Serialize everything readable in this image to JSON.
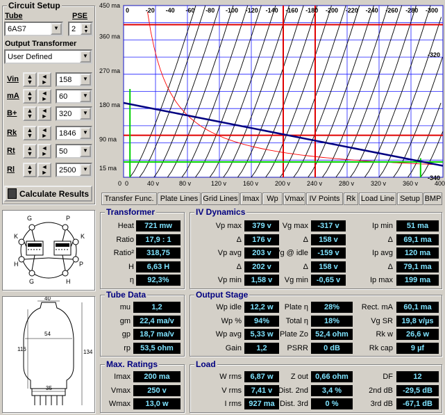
{
  "circuit": {
    "title": "Circuit Setup",
    "tube_label": "Tube",
    "tube_value": "6AS7",
    "pse_label": "PSE",
    "pse_value": "2",
    "ot_label": "Output Transformer",
    "ot_value": "User Defined",
    "params": [
      {
        "label": "Vin",
        "value": "158"
      },
      {
        "label": "mA",
        "value": "60"
      },
      {
        "label": "B+",
        "value": "320"
      },
      {
        "label": "Rk",
        "value": "1846"
      },
      {
        "label": "Rt",
        "value": "50"
      },
      {
        "label": "Rl",
        "value": "2500"
      }
    ],
    "calc_label": "Calculate Results"
  },
  "tabs": [
    "Transfer Func.",
    "Plate Lines",
    "Grid Lines",
    "Imax",
    "Wp",
    "Vmax",
    "IV Points",
    "Rk",
    "Load Line",
    "Setup",
    "BMP"
  ],
  "chart_data": {
    "type": "line",
    "xlabel": "v",
    "ylabel": "ma",
    "x_ticks": [
      "0",
      "40 v",
      "80 v",
      "120 v",
      "160 v",
      "200 v",
      "240 v",
      "280 v",
      "320 v",
      "360 v",
      "400 v"
    ],
    "y_ticks": [
      "450 ma",
      "360 ma",
      "270 ma",
      "180 ma",
      "90 ma",
      "15 ma"
    ],
    "x_top_ticks": [
      "0",
      "-20",
      "-40",
      "-60",
      "-80",
      "-100",
      "-120",
      "-140",
      "-160",
      "-180",
      "-200",
      "-220",
      "-240",
      "-260",
      "-280",
      "-300"
    ],
    "extra_grid_labels": [
      "-320",
      "-340"
    ],
    "xlim": [
      0,
      400
    ],
    "ylim": [
      0,
      450
    ],
    "load_line": {
      "x": [
        0,
        400
      ],
      "y": [
        195,
        30
      ]
    },
    "operating_point": {
      "vp": 240,
      "ip": 100
    },
    "red_v_lines": [
      200,
      240
    ],
    "red_h_lines": [
      400,
      110
    ],
    "green_h_line": 40,
    "green_v_line": 8,
    "max_dissipation_watts": 13
  },
  "panels": {
    "transformer": {
      "title": "Transformer",
      "rows": [
        {
          "label": "Heat",
          "value": "721 mw"
        },
        {
          "label": "Ratio",
          "value": "17,9 : 1"
        },
        {
          "label": "Ratio²",
          "value": "318,75"
        },
        {
          "label": "H",
          "value": "6,63 H"
        },
        {
          "label": "η",
          "value": "92,3%"
        }
      ]
    },
    "iv": {
      "title": "IV Dynamics",
      "col1": [
        {
          "label": "Vp max",
          "value": "379 v"
        },
        {
          "label": "Δ",
          "value": "176 v"
        },
        {
          "label": "Vp avg",
          "value": "203 v"
        },
        {
          "label": "Δ",
          "value": "202 v"
        },
        {
          "label": "Vp min",
          "value": "1,58 v"
        }
      ],
      "col2": [
        {
          "label": "Vg max",
          "value": "-317 v"
        },
        {
          "label": "Δ",
          "value": "158 v"
        },
        {
          "label": "Vg @ idle",
          "value": "-159 v"
        },
        {
          "label": "Δ",
          "value": "158 v"
        },
        {
          "label": "Vg min",
          "value": "-0,65 v"
        }
      ],
      "col3": [
        {
          "label": "Ip min",
          "value": "51 ma"
        },
        {
          "label": "Δ",
          "value": "69,1 ma"
        },
        {
          "label": "Ip avg",
          "value": "120 ma"
        },
        {
          "label": "Δ",
          "value": "79,1 ma"
        },
        {
          "label": "Ip max",
          "value": "199 ma"
        }
      ]
    },
    "tube": {
      "title": "Tube Data",
      "rows": [
        {
          "label": "mu",
          "value": "1,2"
        },
        {
          "label": "gm",
          "value": "22,4 ma/v"
        },
        {
          "label": "gp",
          "value": "18,7 ma/v"
        },
        {
          "label": "rp",
          "value": "53,5 ohm"
        }
      ]
    },
    "output": {
      "title": "Output Stage",
      "col1": [
        {
          "label": "Wp idle",
          "value": "12,2 w"
        },
        {
          "label": "Wp %",
          "value": "94%"
        },
        {
          "label": "Wp avg",
          "value": "5,33 w"
        },
        {
          "label": "Gain",
          "value": "1,2"
        }
      ],
      "col2": [
        {
          "label": "Plate η",
          "value": "28%"
        },
        {
          "label": "Total η",
          "value": "18%"
        },
        {
          "label": "Plate Zo",
          "value": "52,4 ohm"
        },
        {
          "label": "PSRR",
          "value": "0 dB"
        }
      ],
      "col3": [
        {
          "label": "Rect. mA",
          "value": "60,1 ma"
        },
        {
          "label": "Vg SR",
          "value": "19,8 v/µs"
        },
        {
          "label": "Rk w",
          "value": "26,6 w"
        },
        {
          "label": "Rk cap",
          "value": "9 µf"
        }
      ]
    },
    "ratings": {
      "title": "Max. Ratings",
      "rows": [
        {
          "label": "Imax",
          "value": "200 ma"
        },
        {
          "label": "Vmax",
          "value": "250 v"
        },
        {
          "label": "Wmax",
          "value": "13,0 w"
        }
      ]
    },
    "load": {
      "title": "Load",
      "col1": [
        {
          "label": "W rms",
          "value": "6,87 w"
        },
        {
          "label": "V rms",
          "value": "7,41 v"
        },
        {
          "label": "I rms",
          "value": "927 ma"
        }
      ],
      "col2": [
        {
          "label": "Z out",
          "value": "0,66 ohm"
        },
        {
          "label": "Dist. 2nd",
          "value": "3,4 %"
        },
        {
          "label": "Dist. 3rd",
          "value": "0 %"
        }
      ],
      "col3": [
        {
          "label": "DF",
          "value": "12"
        },
        {
          "label": "2nd dB",
          "value": "-29,5 dB"
        },
        {
          "label": "3rd dB",
          "value": "-67,1 dB"
        }
      ]
    }
  },
  "pinout": {
    "labels": [
      "G",
      "P",
      "K",
      "K",
      "G",
      "P",
      "H",
      "H"
    ]
  },
  "dimensions": {
    "top": "40",
    "inner": "54",
    "left": "116",
    "right": "134",
    "base": "35"
  }
}
